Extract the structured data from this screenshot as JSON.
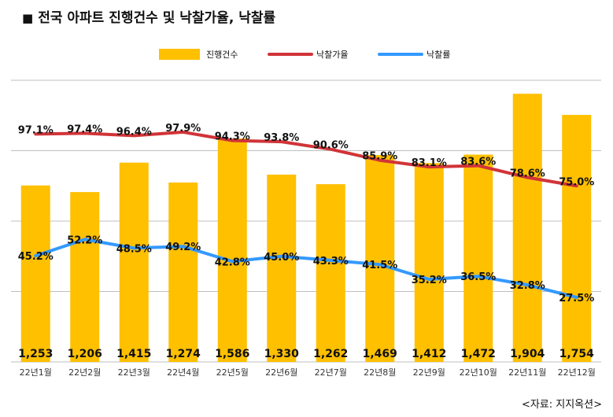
{
  "title": "전국 아파트 진행건수 및 낙찰가율, 낙찰률",
  "title_marker": "■",
  "source": "<자료: 지지옥션>",
  "colors": {
    "bar": "#FFC000",
    "sale_rate_line": "#D13438",
    "success_rate_line": "#3399FF",
    "grid": "#BFBFBF"
  },
  "chart_data": {
    "type": "bar",
    "categories": [
      "22년1월",
      "22년2월",
      "22년3월",
      "22년4월",
      "22년5월",
      "22년6월",
      "22년7월",
      "22년8월",
      "22년9월",
      "22년10월",
      "22년11월",
      "22년12월"
    ],
    "series": [
      {
        "name": "진행건수",
        "type": "bar",
        "axis": "left",
        "values": [
          1253,
          1206,
          1415,
          1274,
          1586,
          1330,
          1262,
          1469,
          1412,
          1472,
          1904,
          1754
        ],
        "labels": [
          "1,253",
          "1,206",
          "1,415",
          "1,274",
          "1,586",
          "1,330",
          "1,262",
          "1,469",
          "1,412",
          "1,472",
          "1,904",
          "1,754"
        ]
      },
      {
        "name": "낙찰가율",
        "type": "line",
        "axis": "right",
        "values": [
          97.1,
          97.4,
          96.4,
          97.9,
          94.3,
          93.8,
          90.6,
          85.9,
          83.1,
          83.6,
          78.6,
          75.0
        ],
        "labels": [
          "97.1%",
          "97.4%",
          "96.4%",
          "97.9%",
          "94.3%",
          "93.8%",
          "90.6%",
          "85.9%",
          "83.1%",
          "83.6%",
          "78.6%",
          "75.0%"
        ]
      },
      {
        "name": "낙찰률",
        "type": "line",
        "axis": "right",
        "values": [
          45.2,
          52.2,
          48.5,
          49.2,
          42.8,
          45.0,
          43.3,
          41.5,
          35.2,
          36.5,
          32.8,
          27.5
        ],
        "labels": [
          "45.2%",
          "52.2%",
          "48.5%",
          "49.2%",
          "42.8%",
          "45.0%",
          "43.3%",
          "41.5%",
          "35.2%",
          "36.5%",
          "32.8%",
          "27.5%"
        ]
      }
    ],
    "legend_position": "top",
    "grid": true,
    "ylim_left": [
      0,
      2000
    ],
    "ylim_right": [
      0,
      120
    ]
  }
}
